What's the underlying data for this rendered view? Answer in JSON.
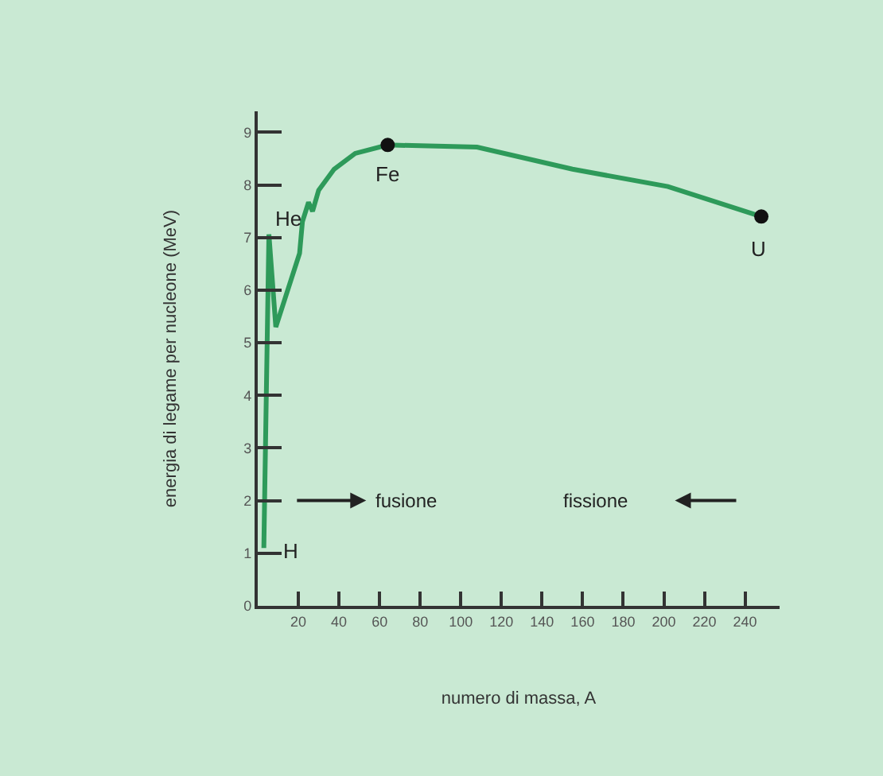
{
  "chart_data": {
    "type": "line",
    "xlabel": "numero di massa, A",
    "ylabel": "energia di legame per nucleone (MeV)",
    "series": [
      {
        "color": "#2e9a5a",
        "x": [
          3,
          5.5,
          8.9,
          20.6,
          22,
          25,
          27,
          30,
          37.6,
          48,
          64,
          108,
          155,
          202,
          248
        ],
        "values": [
          1.1,
          7.06,
          5.3,
          6.7,
          7.3,
          7.67,
          7.5,
          7.9,
          8.3,
          8.6,
          8.76,
          8.72,
          8.3,
          7.97,
          7.4
        ]
      },
      {
        "type": "scatter",
        "color": "#111111",
        "marker": "circle",
        "x": [
          64,
          248
        ],
        "values": [
          8.76,
          7.4
        ]
      }
    ],
    "xlim": [
      0,
      257
    ],
    "xticks": [
      20,
      40,
      60,
      80,
      100,
      120,
      140,
      160,
      180,
      200,
      220,
      240
    ],
    "ylim": [
      0,
      9.4
    ],
    "yticks": [
      0,
      1,
      2,
      3,
      4,
      5,
      6,
      7,
      8,
      9
    ],
    "grid": false,
    "marker": "none",
    "line_style": "solid",
    "annotations": [
      {
        "text": "He",
        "x": 5.5,
        "y": 7.06
      },
      {
        "text": "H",
        "x": 3,
        "y": 1.1
      },
      {
        "text": "Fe",
        "x": 64,
        "y": 8.76
      },
      {
        "text": "U",
        "x": 248,
        "y": 7.4
      },
      "fusione",
      "fissione"
    ]
  }
}
